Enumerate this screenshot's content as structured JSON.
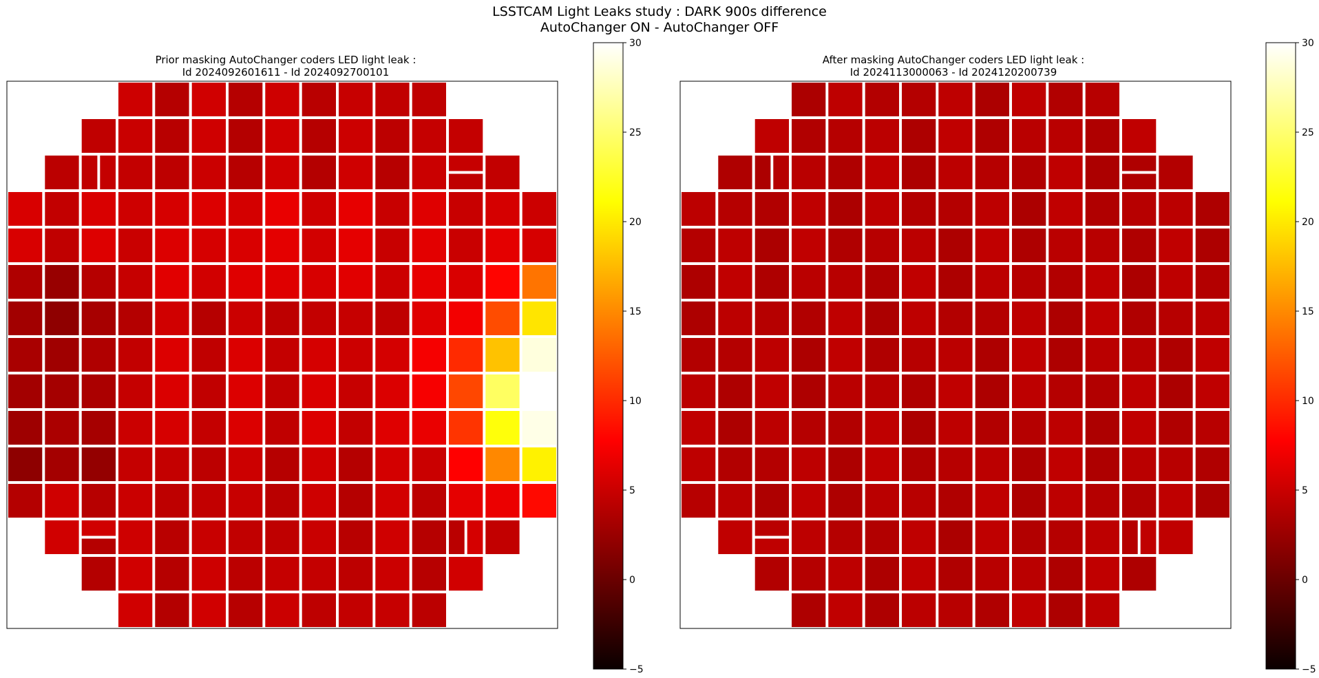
{
  "figure": {
    "title_line1": "LSSTCAM Light Leaks study : DARK 900s difference",
    "title_line2": "AutoChanger ON - AutoChanger OFF"
  },
  "chart_data": [
    {
      "type": "heatmap",
      "title_line1": "Prior masking AutoChanger coders LED light leak :",
      "title_line2": "Id 2024092601611 - Id 2024092700101",
      "description": "LSSTCam focal plane mosaic of CCD difference images (15x15 grid footprint, corner rafts with small sensors); strong leak gradient toward right / lower-right",
      "colormap": "hot",
      "colorbar": {
        "min": -5,
        "max": 30,
        "ticks": [
          -5,
          0,
          5,
          10,
          15,
          20,
          25,
          30
        ]
      },
      "typical_value": 4,
      "hotspot": {
        "region": "right edge, rows 5-9",
        "peak_value": 30
      }
    },
    {
      "type": "heatmap",
      "title_line1": "After masking AutoChanger coders LED light leak :",
      "title_line2": "Id 2024113000063 - Id 2024120200739",
      "description": "Same focal plane mosaic after masking; uniform dark-red level, no visible leak",
      "colormap": "hot",
      "colorbar": {
        "min": -5,
        "max": 30,
        "ticks": [
          -5,
          0,
          5,
          10,
          15,
          20,
          25,
          30
        ]
      },
      "typical_value": 3.5
    }
  ]
}
